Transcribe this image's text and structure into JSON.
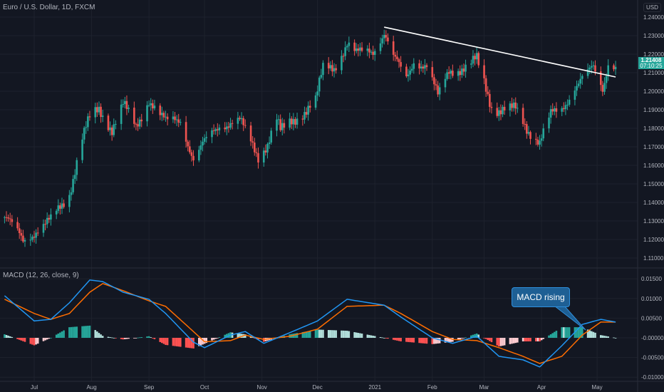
{
  "header": {
    "title": "Euro / U.S. Dollar, 1D, FXCM",
    "currency": "USD"
  },
  "last_price": {
    "value": "1.21408",
    "countdown": "07:10:25",
    "color": "#26a69a"
  },
  "indicator": {
    "label": "MACD (12, 26, close, 9)"
  },
  "annotation": {
    "text": "MACD rising",
    "color": "#1e5f94"
  },
  "colors": {
    "background": "#131722",
    "up": "#26a69a",
    "down": "#ef5350",
    "macd": "#2196f3",
    "signal": "#ff6d00",
    "trendline": "#ffffff",
    "hist_up_strong": "#26a69a",
    "hist_up_weak": "#b2dfdb",
    "hist_down_strong": "#ff5252",
    "hist_down_weak": "#ffcdd2"
  },
  "chart_data": [
    {
      "type": "candlestick",
      "title": "Euro / U.S. Dollar, 1D, FXCM",
      "x_ticks": [
        "Jul",
        "Aug",
        "Sep",
        "Oct",
        "Nov",
        "Dec",
        "2021",
        "Feb",
        "Mar",
        "Apr",
        "May"
      ],
      "x_tick_dates": [
        "2020-07-01",
        "2020-08-01",
        "2020-09-01",
        "2020-10-01",
        "2020-11-01",
        "2020-12-01",
        "2021-01-01",
        "2021-02-01",
        "2021-03-01",
        "2021-04-01",
        "2021-05-01"
      ],
      "x_range": [
        "2020-06-15",
        "2021-05-11"
      ],
      "y_ticks": [
        "1.24000",
        "1.23000",
        "1.22000",
        "1.21000",
        "1.20000",
        "1.19000",
        "1.18000",
        "1.17000",
        "1.16000",
        "1.15000",
        "1.14000",
        "1.13000",
        "1.12000",
        "1.11000"
      ],
      "ylim": [
        1.105,
        1.245
      ],
      "grid": true,
      "close_keypoints": [
        [
          "2020-06-15",
          1.132
        ],
        [
          "2020-06-25",
          1.12
        ],
        [
          "2020-07-01",
          1.124
        ],
        [
          "2020-07-10",
          1.13
        ],
        [
          "2020-07-20",
          1.145
        ],
        [
          "2020-07-27",
          1.175
        ],
        [
          "2020-07-31",
          1.185
        ],
        [
          "2020-08-05",
          1.19
        ],
        [
          "2020-08-12",
          1.18
        ],
        [
          "2020-08-18",
          1.193
        ],
        [
          "2020-08-25",
          1.18
        ],
        [
          "2020-09-01",
          1.196
        ],
        [
          "2020-09-10",
          1.183
        ],
        [
          "2020-09-18",
          1.185
        ],
        [
          "2020-09-25",
          1.163
        ],
        [
          "2020-10-01",
          1.172
        ],
        [
          "2020-10-09",
          1.182
        ],
        [
          "2020-10-20",
          1.184
        ],
        [
          "2020-10-30",
          1.165
        ],
        [
          "2020-11-04",
          1.172
        ],
        [
          "2020-11-09",
          1.185
        ],
        [
          "2020-11-11",
          1.178
        ],
        [
          "2020-11-20",
          1.186
        ],
        [
          "2020-11-30",
          1.195
        ],
        [
          "2020-12-04",
          1.212
        ],
        [
          "2020-12-10",
          1.213
        ],
        [
          "2020-12-17",
          1.226
        ],
        [
          "2020-12-22",
          1.22
        ],
        [
          "2020-12-31",
          1.222
        ],
        [
          "2021-01-06",
          1.232
        ],
        [
          "2021-01-11",
          1.218
        ],
        [
          "2021-01-18",
          1.207
        ],
        [
          "2021-01-22",
          1.217
        ],
        [
          "2021-01-29",
          1.213
        ],
        [
          "2021-02-04",
          1.197
        ],
        [
          "2021-02-10",
          1.212
        ],
        [
          "2021-02-19",
          1.212
        ],
        [
          "2021-02-25",
          1.217
        ],
        [
          "2021-03-01",
          1.205
        ],
        [
          "2021-03-05",
          1.192
        ],
        [
          "2021-03-09",
          1.19
        ],
        [
          "2021-03-18",
          1.19
        ],
        [
          "2021-03-24",
          1.18
        ],
        [
          "2021-03-31",
          1.173
        ],
        [
          "2021-04-06",
          1.187
        ],
        [
          "2021-04-12",
          1.19
        ],
        [
          "2021-04-19",
          1.203
        ],
        [
          "2021-04-23",
          1.207
        ],
        [
          "2021-04-29",
          1.212
        ],
        [
          "2021-05-04",
          1.201
        ],
        [
          "2021-05-07",
          1.216
        ],
        [
          "2021-05-11",
          1.214
        ]
      ],
      "trendline": {
        "from": [
          "2021-01-06",
          1.2346
        ],
        "to": [
          "2021-05-11",
          1.2077
        ]
      }
    },
    {
      "type": "line",
      "title": "MACD (12, 26, close, 9)",
      "y_ticks": [
        "0.01500",
        "0.01000",
        "0.00500",
        "-0.00000",
        "-0.00500",
        "-0.01000"
      ],
      "ylim": [
        -0.0113,
        0.0178
      ],
      "series": [
        {
          "key": "macd",
          "points": [
            [
              "2020-06-15",
              0.0107
            ],
            [
              "2020-07-01",
              0.0043
            ],
            [
              "2020-07-10",
              0.0047
            ],
            [
              "2020-07-20",
              0.0089
            ],
            [
              "2020-07-31",
              0.0147
            ],
            [
              "2020-08-07",
              0.0143
            ],
            [
              "2020-08-18",
              0.0116
            ],
            [
              "2020-09-01",
              0.0098
            ],
            [
              "2020-09-10",
              0.0062
            ],
            [
              "2020-09-25",
              -0.0011
            ],
            [
              "2020-10-01",
              -0.0025
            ],
            [
              "2020-10-15",
              0.0007
            ],
            [
              "2020-10-23",
              0.0016
            ],
            [
              "2020-11-02",
              -0.0014
            ],
            [
              "2020-11-16",
              0.0013
            ],
            [
              "2020-12-01",
              0.0043
            ],
            [
              "2020-12-17",
              0.0098
            ],
            [
              "2021-01-06",
              0.0083
            ],
            [
              "2021-01-15",
              0.0053
            ],
            [
              "2021-02-01",
              0.0
            ],
            [
              "2021-02-12",
              -0.0014
            ],
            [
              "2021-02-25",
              0.0004
            ],
            [
              "2021-03-09",
              -0.0047
            ],
            [
              "2021-03-22",
              -0.0056
            ],
            [
              "2021-03-31",
              -0.0074
            ],
            [
              "2021-04-12",
              -0.002
            ],
            [
              "2021-04-23",
              0.0034
            ],
            [
              "2021-05-03",
              0.0047
            ],
            [
              "2021-05-11",
              0.004
            ]
          ]
        },
        {
          "key": "signal",
          "points": [
            [
              "2020-06-15",
              0.0098
            ],
            [
              "2020-07-01",
              0.0062
            ],
            [
              "2020-07-10",
              0.0047
            ],
            [
              "2020-07-20",
              0.0062
            ],
            [
              "2020-07-31",
              0.0116
            ],
            [
              "2020-08-07",
              0.0138
            ],
            [
              "2020-08-18",
              0.012
            ],
            [
              "2020-09-01",
              0.0094
            ],
            [
              "2020-09-10",
              0.008
            ],
            [
              "2020-09-25",
              0.0016
            ],
            [
              "2020-10-01",
              -0.001
            ],
            [
              "2020-10-15",
              -0.0007
            ],
            [
              "2020-10-23",
              0.0007
            ],
            [
              "2020-11-02",
              -0.0004
            ],
            [
              "2020-11-16",
              0.0004
            ],
            [
              "2020-12-01",
              0.0022
            ],
            [
              "2020-12-17",
              0.008
            ],
            [
              "2021-01-06",
              0.0083
            ],
            [
              "2021-01-15",
              0.0062
            ],
            [
              "2021-02-01",
              0.0016
            ],
            [
              "2021-02-12",
              -0.0004
            ],
            [
              "2021-02-25",
              -0.0007
            ],
            [
              "2021-03-09",
              -0.0025
            ],
            [
              "2021-03-22",
              -0.0047
            ],
            [
              "2021-03-31",
              -0.0065
            ],
            [
              "2021-04-12",
              -0.0047
            ],
            [
              "2021-04-23",
              0.0007
            ],
            [
              "2021-05-03",
              0.004
            ],
            [
              "2021-05-11",
              0.004
            ]
          ]
        }
      ]
    }
  ]
}
